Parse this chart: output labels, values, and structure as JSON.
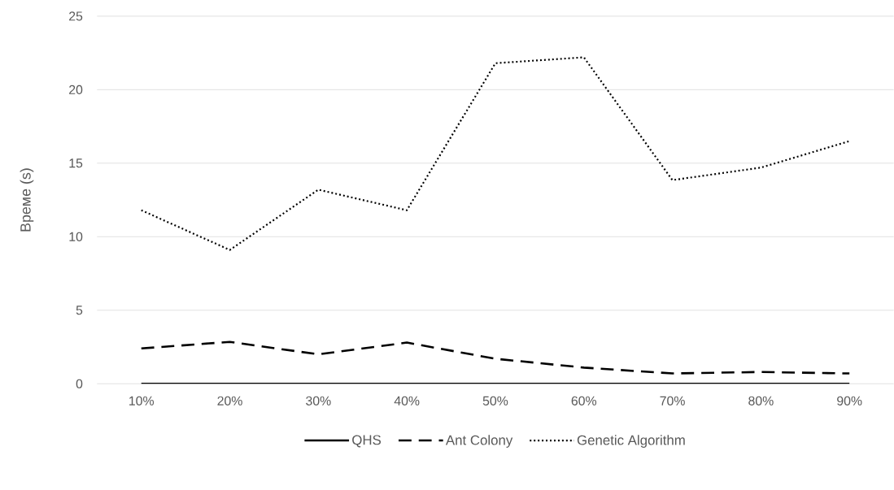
{
  "chart_data": {
    "type": "line",
    "ylabel": "Време (s)",
    "categories": [
      "10%",
      "20%",
      "30%",
      "40%",
      "50%",
      "60%",
      "70%",
      "80%",
      "90%"
    ],
    "series": [
      {
        "name": "QHS",
        "color": "#000000",
        "line_style": "solid",
        "values": [
          0,
          0,
          0,
          0,
          0,
          0,
          0,
          0,
          0
        ]
      },
      {
        "name": "Ant Colony",
        "color": "#000000",
        "line_style": "dashed",
        "values": [
          2.4,
          2.85,
          2.0,
          2.8,
          1.7,
          1.1,
          0.7,
          0.8,
          0.7
        ]
      },
      {
        "name": "Genetic Algorithm",
        "color": "#000000",
        "line_style": "dotted",
        "values": [
          11.8,
          9.1,
          13.2,
          11.8,
          21.8,
          22.2,
          13.85,
          14.7,
          16.5
        ]
      }
    ],
    "ylim": [
      0,
      25
    ],
    "yticks": [
      0,
      5,
      10,
      15,
      20,
      25
    ],
    "grid": "y",
    "legend": "bottom",
    "marker": "none"
  }
}
